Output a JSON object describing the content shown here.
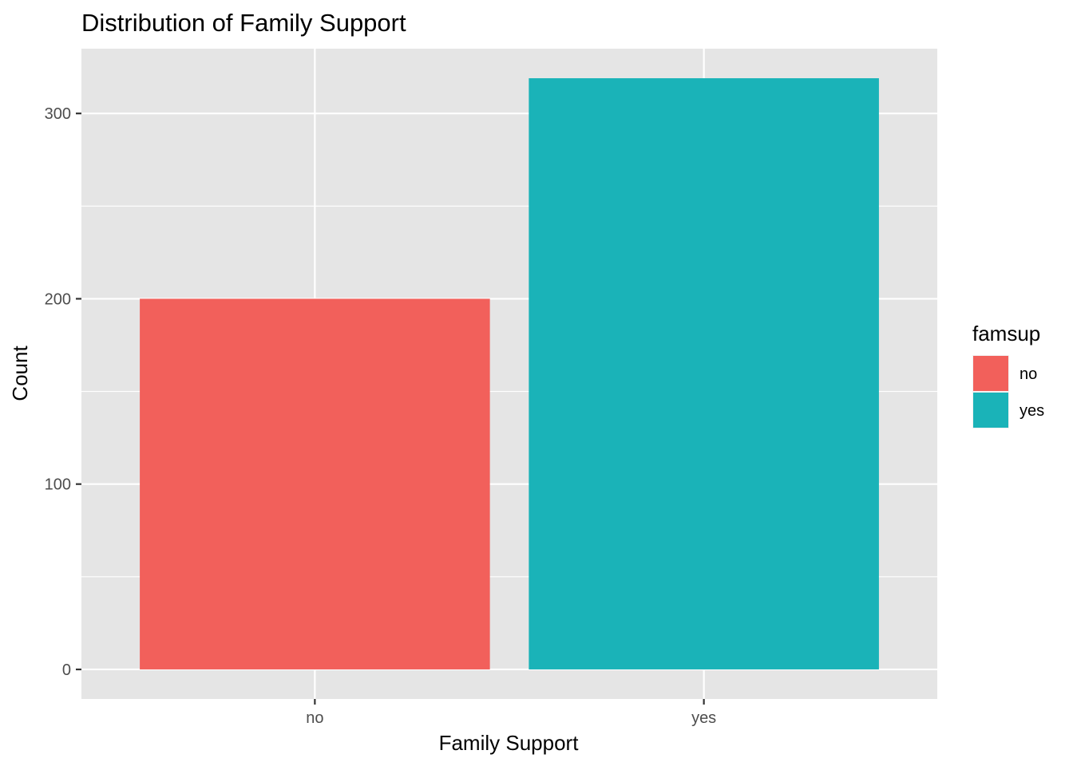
{
  "chart_data": {
    "type": "bar",
    "title": "Distribution of Family Support",
    "xlabel": "Family Support",
    "ylabel": "Count",
    "categories": [
      "no",
      "yes"
    ],
    "values": [
      200,
      319
    ],
    "colors": [
      "#F8766D",
      "#00BFC4"
    ],
    "bar_colors_rendered": [
      "#F2605B",
      "#1AB3B8"
    ],
    "ylim": [
      -15.95,
      334.95
    ],
    "yticks": [
      0,
      100,
      200,
      300
    ],
    "ytick_labels": [
      "0",
      "100",
      "200",
      "300"
    ],
    "grid": true,
    "legend": {
      "title": "famsup",
      "position": "right",
      "entries": [
        "no",
        "yes"
      ]
    },
    "panel_background": "#E5E5E5",
    "grid_color": "#FFFFFF"
  }
}
